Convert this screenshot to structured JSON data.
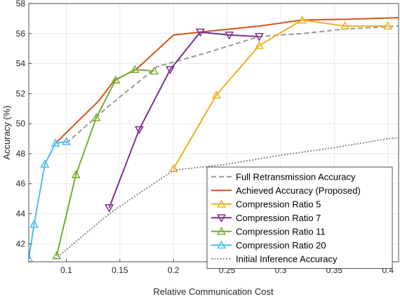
{
  "chart_data": {
    "type": "line",
    "xlabel": "Relative Communication Cost",
    "ylabel": "Accuracy (%)",
    "xlim": [
      0.065,
      0.41
    ],
    "ylim": [
      40.8,
      58
    ],
    "x_ticks": [
      {
        "value": 0.1,
        "label": "0.1"
      },
      {
        "value": 0.15,
        "label": "0.15"
      },
      {
        "value": 0.2,
        "label": "0.2"
      },
      {
        "value": 0.25,
        "label": "0.25"
      },
      {
        "value": 0.3,
        "label": "0.3"
      },
      {
        "value": 0.35,
        "label": "0.35"
      },
      {
        "value": 0.4,
        "label": "0.4"
      }
    ],
    "y_ticks": [
      {
        "value": 42,
        "label": "42"
      },
      {
        "value": 44,
        "label": "44"
      },
      {
        "value": 46,
        "label": "46"
      },
      {
        "value": 48,
        "label": "48"
      },
      {
        "value": 50,
        "label": "50"
      },
      {
        "value": 52,
        "label": "52"
      },
      {
        "value": 54,
        "label": "54"
      },
      {
        "value": 56,
        "label": "56"
      },
      {
        "value": 58,
        "label": "58"
      }
    ],
    "grid": true,
    "legend_position": "bottom-right",
    "series": [
      {
        "name": "Full Retransmission Accuracy",
        "color": "#999999",
        "style": "dashed",
        "marker": "none",
        "x": [
          0.1,
          0.14,
          0.185,
          0.23,
          0.28,
          0.32,
          0.36,
          0.41
        ],
        "y": [
          48.7,
          51.2,
          53.8,
          54.7,
          55.8,
          56.0,
          56.3,
          56.5
        ]
      },
      {
        "name": "Achieved Accuracy (Proposed)",
        "color": "#d95319",
        "style": "solid",
        "marker": "none",
        "x": [
          0.09,
          0.1,
          0.13,
          0.145,
          0.165,
          0.2,
          0.225,
          0.28,
          0.32,
          0.36,
          0.41
        ],
        "y": [
          48.7,
          49.4,
          51.5,
          52.9,
          53.6,
          55.9,
          56.1,
          56.5,
          56.9,
          56.95,
          57.05
        ]
      },
      {
        "name": "Compression Ratio 5",
        "color": "#edb120",
        "style": "solid",
        "marker": "triangle-up",
        "x": [
          0.2,
          0.24,
          0.28,
          0.32,
          0.36,
          0.4
        ],
        "y": [
          47.0,
          51.9,
          55.2,
          56.9,
          56.5,
          56.5
        ]
      },
      {
        "name": "Compression Ratio 7",
        "color": "#7e2f8e",
        "style": "solid",
        "marker": "triangle-down",
        "x": [
          0.14,
          0.168,
          0.197,
          0.225,
          0.252,
          0.28
        ],
        "y": [
          44.4,
          49.6,
          53.6,
          56.1,
          55.9,
          55.8
        ]
      },
      {
        "name": "Compression Ratio 11",
        "color": "#77ac30",
        "style": "solid",
        "marker": "triangle-up",
        "x": [
          0.091,
          0.109,
          0.128,
          0.146,
          0.164,
          0.182
        ],
        "y": [
          41.2,
          46.6,
          50.4,
          52.9,
          53.6,
          53.5
        ]
      },
      {
        "name": "Compression Ratio 20",
        "color": "#4dbeee",
        "style": "solid",
        "marker": "triangle-up",
        "x": [
          0.065,
          0.07,
          0.08,
          0.09,
          0.1
        ],
        "y": [
          41.0,
          43.3,
          47.3,
          48.7,
          48.8
        ]
      },
      {
        "name": "Initial Inference Accuracy",
        "color": "#888888",
        "style": "dotted",
        "marker": "none",
        "x": [
          0.09,
          0.14,
          0.2,
          0.25,
          0.3,
          0.35,
          0.4,
          0.41
        ],
        "y": [
          41.0,
          44.0,
          46.9,
          47.3,
          47.9,
          48.4,
          49.0,
          49.05
        ]
      }
    ]
  }
}
